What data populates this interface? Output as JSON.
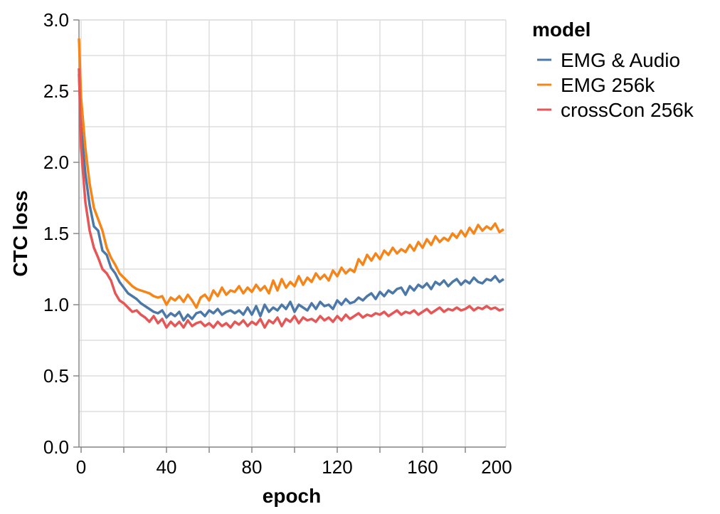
{
  "chart_data": {
    "type": "line",
    "xlabel": "epoch",
    "ylabel": "CTC loss",
    "xlim": [
      -1,
      199
    ],
    "ylim": [
      0,
      3
    ],
    "x_ticks": [
      0,
      40,
      80,
      120,
      160,
      200
    ],
    "y_ticks": [
      0.0,
      0.5,
      1.0,
      1.5,
      2.0,
      2.5,
      3.0
    ],
    "x_tick_labels": [
      "0",
      "40",
      "80",
      "120",
      "160",
      "200"
    ],
    "y_tick_labels": [
      "0.0",
      "0.5",
      "1.0",
      "1.5",
      "2.0",
      "2.5",
      "3.0"
    ],
    "grid": true,
    "legend": {
      "title": "model",
      "placement": "right"
    },
    "series": [
      {
        "name": "EMG & Audio",
        "color": "#4c78a8",
        "x": [
          -1,
          0,
          2,
          4,
          6,
          8,
          10,
          12,
          14,
          16,
          18,
          20,
          22,
          24,
          26,
          28,
          30,
          32,
          34,
          36,
          38,
          40,
          42,
          44,
          46,
          48,
          50,
          52,
          54,
          56,
          58,
          60,
          62,
          64,
          66,
          68,
          70,
          72,
          74,
          76,
          78,
          80,
          82,
          84,
          86,
          88,
          90,
          92,
          94,
          96,
          98,
          100,
          102,
          104,
          106,
          108,
          110,
          112,
          114,
          116,
          118,
          120,
          122,
          124,
          126,
          128,
          130,
          132,
          134,
          136,
          138,
          140,
          142,
          144,
          146,
          148,
          150,
          152,
          154,
          156,
          158,
          160,
          162,
          164,
          166,
          168,
          170,
          172,
          174,
          176,
          178,
          180,
          182,
          184,
          186,
          188,
          190,
          192,
          194,
          196,
          198
        ],
        "y": [
          2.62,
          2.25,
          1.92,
          1.7,
          1.55,
          1.52,
          1.38,
          1.35,
          1.26,
          1.22,
          1.16,
          1.12,
          1.08,
          1.06,
          1.04,
          1.01,
          0.99,
          0.97,
          0.95,
          0.94,
          0.96,
          0.91,
          0.94,
          0.92,
          0.95,
          0.89,
          0.93,
          0.9,
          0.94,
          0.95,
          0.92,
          0.96,
          0.94,
          0.97,
          0.93,
          0.95,
          0.96,
          0.94,
          0.96,
          0.93,
          0.98,
          0.93,
          0.99,
          0.92,
          1.0,
          0.95,
          0.98,
          0.96,
          1.0,
          0.97,
          1.02,
          0.95,
          1.0,
          0.98,
          0.96,
          1.01,
          0.97,
          1.02,
          0.99,
          1.0,
          0.97,
          1.03,
          1.0,
          1.04,
          1.01,
          1.02,
          1.05,
          1.03,
          1.06,
          1.08,
          1.04,
          1.09,
          1.06,
          1.1,
          1.08,
          1.11,
          1.12,
          1.07,
          1.13,
          1.1,
          1.14,
          1.12,
          1.15,
          1.11,
          1.16,
          1.14,
          1.17,
          1.13,
          1.16,
          1.18,
          1.14,
          1.17,
          1.15,
          1.19,
          1.16,
          1.15,
          1.18,
          1.17,
          1.2,
          1.16,
          1.18
        ]
      },
      {
        "name": "EMG 256k",
        "color": "#f58518",
        "x": [
          -1,
          0,
          2,
          4,
          6,
          8,
          10,
          12,
          14,
          16,
          18,
          20,
          22,
          24,
          26,
          28,
          30,
          32,
          34,
          36,
          38,
          40,
          42,
          44,
          46,
          48,
          50,
          52,
          54,
          56,
          58,
          60,
          62,
          64,
          66,
          68,
          70,
          72,
          74,
          76,
          78,
          80,
          82,
          84,
          86,
          88,
          90,
          92,
          94,
          96,
          98,
          100,
          102,
          104,
          106,
          108,
          110,
          112,
          114,
          116,
          118,
          120,
          122,
          124,
          126,
          128,
          130,
          132,
          134,
          136,
          138,
          140,
          142,
          144,
          146,
          148,
          150,
          152,
          154,
          156,
          158,
          160,
          162,
          164,
          166,
          168,
          170,
          172,
          174,
          176,
          178,
          180,
          182,
          184,
          186,
          188,
          190,
          192,
          194,
          196,
          198
        ],
        "y": [
          2.87,
          2.45,
          2.1,
          1.85,
          1.68,
          1.6,
          1.52,
          1.4,
          1.33,
          1.28,
          1.22,
          1.19,
          1.16,
          1.13,
          1.11,
          1.1,
          1.09,
          1.08,
          1.06,
          1.05,
          1.06,
          1.0,
          1.05,
          1.03,
          1.06,
          1.02,
          1.07,
          1.03,
          0.98,
          1.05,
          1.07,
          1.03,
          1.1,
          1.06,
          1.12,
          1.07,
          1.1,
          1.09,
          1.13,
          1.08,
          1.12,
          1.09,
          1.14,
          1.1,
          1.13,
          1.08,
          1.17,
          1.1,
          1.18,
          1.12,
          1.16,
          1.13,
          1.2,
          1.14,
          1.19,
          1.16,
          1.22,
          1.18,
          1.21,
          1.17,
          1.24,
          1.2,
          1.26,
          1.22,
          1.25,
          1.23,
          1.32,
          1.28,
          1.35,
          1.31,
          1.36,
          1.32,
          1.38,
          1.35,
          1.4,
          1.36,
          1.39,
          1.37,
          1.42,
          1.38,
          1.44,
          1.4,
          1.46,
          1.42,
          1.48,
          1.44,
          1.47,
          1.45,
          1.5,
          1.47,
          1.52,
          1.48,
          1.54,
          1.5,
          1.56,
          1.52,
          1.55,
          1.53,
          1.57,
          1.51,
          1.53
        ]
      },
      {
        "name": "crossCon 256k",
        "color": "#e45756",
        "x": [
          -1,
          0,
          2,
          4,
          6,
          8,
          10,
          12,
          14,
          16,
          18,
          20,
          22,
          24,
          26,
          28,
          30,
          32,
          34,
          36,
          38,
          40,
          42,
          44,
          46,
          48,
          50,
          52,
          54,
          56,
          58,
          60,
          62,
          64,
          66,
          68,
          70,
          72,
          74,
          76,
          78,
          80,
          82,
          84,
          86,
          88,
          90,
          92,
          94,
          96,
          98,
          100,
          102,
          104,
          106,
          108,
          110,
          112,
          114,
          116,
          118,
          120,
          122,
          124,
          126,
          128,
          130,
          132,
          134,
          136,
          138,
          140,
          142,
          144,
          146,
          148,
          150,
          152,
          154,
          156,
          158,
          160,
          162,
          164,
          166,
          168,
          170,
          172,
          174,
          176,
          178,
          180,
          182,
          184,
          186,
          188,
          190,
          192,
          194,
          196,
          198
        ],
        "y": [
          2.66,
          2.1,
          1.72,
          1.52,
          1.4,
          1.33,
          1.25,
          1.22,
          1.17,
          1.08,
          1.03,
          1.01,
          0.98,
          0.95,
          0.96,
          0.93,
          0.91,
          0.88,
          0.92,
          0.87,
          0.9,
          0.84,
          0.88,
          0.85,
          0.88,
          0.84,
          0.89,
          0.85,
          0.87,
          0.88,
          0.85,
          0.87,
          0.84,
          0.88,
          0.85,
          0.87,
          0.84,
          0.88,
          0.86,
          0.89,
          0.85,
          0.88,
          0.86,
          0.9,
          0.84,
          0.89,
          0.87,
          0.91,
          0.85,
          0.9,
          0.88,
          0.92,
          0.87,
          0.91,
          0.89,
          0.9,
          0.88,
          0.92,
          0.89,
          0.91,
          0.88,
          0.92,
          0.89,
          0.93,
          0.9,
          0.92,
          0.94,
          0.91,
          0.93,
          0.92,
          0.94,
          0.93,
          0.95,
          0.92,
          0.94,
          0.96,
          0.93,
          0.95,
          0.94,
          0.96,
          0.93,
          0.95,
          0.97,
          0.94,
          0.96,
          0.98,
          0.95,
          0.97,
          0.96,
          0.98,
          0.96,
          0.97,
          0.99,
          0.96,
          0.98,
          0.97,
          0.99,
          0.97,
          0.98,
          0.96,
          0.97
        ]
      }
    ]
  }
}
